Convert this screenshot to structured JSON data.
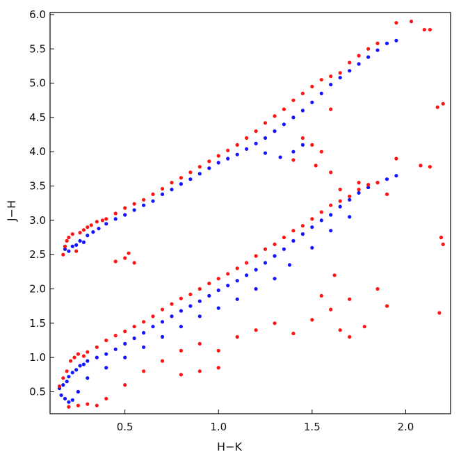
{
  "chart_data": {
    "type": "scatter",
    "xlabel": "H−K",
    "ylabel": "J−H",
    "xlim": [
      0.1,
      2.24
    ],
    "ylim": [
      0.18,
      6.03
    ],
    "x_ticks": [
      {
        "value": 0.5,
        "label": "0.5"
      },
      {
        "value": 1.0,
        "label": "1.0"
      },
      {
        "value": 1.5,
        "label": "1.5"
      },
      {
        "value": 2.0,
        "label": "2.0"
      }
    ],
    "y_ticks": [
      {
        "value": 0.5,
        "label": "0.5"
      },
      {
        "value": 1.0,
        "label": "1.0"
      },
      {
        "value": 1.5,
        "label": "1.5"
      },
      {
        "value": 2.0,
        "label": "2.0"
      },
      {
        "value": 2.5,
        "label": "2.5"
      },
      {
        "value": 3.0,
        "label": "3.0"
      },
      {
        "value": 3.5,
        "label": "3.5"
      },
      {
        "value": 4.0,
        "label": "4.0"
      },
      {
        "value": 4.5,
        "label": "4.5"
      },
      {
        "value": 5.0,
        "label": "5.0"
      },
      {
        "value": 5.5,
        "label": "5.5"
      },
      {
        "value": 6.0,
        "label": "6.0"
      }
    ],
    "grid": false,
    "legend": "none",
    "colors": {
      "series_a": "#1414ff",
      "series_b": "#ff1414"
    },
    "series": [
      {
        "color": "#1414ff",
        "points": [
          [
            0.18,
            2.58
          ],
          [
            0.2,
            2.55
          ],
          [
            0.22,
            2.62
          ],
          [
            0.24,
            2.64
          ],
          [
            0.26,
            2.7
          ],
          [
            0.28,
            2.68
          ],
          [
            0.3,
            2.78
          ],
          [
            0.33,
            2.83
          ],
          [
            0.36,
            2.88
          ],
          [
            0.4,
            2.95
          ],
          [
            0.45,
            3.02
          ],
          [
            0.5,
            3.08
          ],
          [
            0.55,
            3.15
          ],
          [
            0.6,
            3.22
          ],
          [
            0.65,
            3.28
          ],
          [
            0.7,
            3.38
          ],
          [
            0.75,
            3.45
          ],
          [
            0.8,
            3.53
          ],
          [
            0.85,
            3.6
          ],
          [
            0.9,
            3.68
          ],
          [
            0.95,
            3.76
          ],
          [
            1.0,
            3.84
          ],
          [
            1.05,
            3.9
          ],
          [
            1.1,
            3.96
          ],
          [
            1.15,
            4.04
          ],
          [
            1.2,
            4.12
          ],
          [
            1.25,
            4.2
          ],
          [
            1.3,
            4.3
          ],
          [
            1.35,
            4.4
          ],
          [
            1.4,
            4.5
          ],
          [
            1.45,
            4.6
          ],
          [
            1.5,
            4.72
          ],
          [
            1.55,
            4.85
          ],
          [
            1.6,
            4.98
          ],
          [
            1.65,
            5.08
          ],
          [
            1.7,
            5.18
          ],
          [
            1.75,
            5.28
          ],
          [
            1.8,
            5.38
          ],
          [
            1.85,
            5.48
          ],
          [
            1.9,
            5.58
          ],
          [
            1.95,
            5.62
          ],
          [
            1.33,
            3.92
          ],
          [
            1.4,
            4.0
          ],
          [
            1.45,
            4.1
          ],
          [
            1.25,
            3.98
          ],
          [
            0.15,
            0.55
          ],
          [
            0.17,
            0.6
          ],
          [
            0.19,
            0.65
          ],
          [
            0.2,
            0.72
          ],
          [
            0.22,
            0.78
          ],
          [
            0.24,
            0.82
          ],
          [
            0.26,
            0.88
          ],
          [
            0.28,
            0.9
          ],
          [
            0.3,
            0.95
          ],
          [
            0.35,
            1.0
          ],
          [
            0.4,
            1.05
          ],
          [
            0.45,
            1.12
          ],
          [
            0.5,
            1.2
          ],
          [
            0.55,
            1.28
          ],
          [
            0.6,
            1.36
          ],
          [
            0.65,
            1.45
          ],
          [
            0.7,
            1.52
          ],
          [
            0.75,
            1.6
          ],
          [
            0.8,
            1.68
          ],
          [
            0.85,
            1.75
          ],
          [
            0.9,
            1.82
          ],
          [
            0.95,
            1.9
          ],
          [
            1.0,
            1.98
          ],
          [
            1.05,
            2.05
          ],
          [
            1.1,
            2.12
          ],
          [
            1.15,
            2.2
          ],
          [
            1.2,
            2.28
          ],
          [
            1.25,
            2.38
          ],
          [
            1.3,
            2.48
          ],
          [
            1.35,
            2.58
          ],
          [
            1.4,
            2.7
          ],
          [
            1.45,
            2.8
          ],
          [
            1.5,
            2.9
          ],
          [
            1.55,
            3.0
          ],
          [
            1.6,
            3.08
          ],
          [
            1.65,
            3.2
          ],
          [
            1.7,
            3.3
          ],
          [
            1.75,
            3.4
          ],
          [
            1.8,
            3.48
          ],
          [
            1.85,
            3.55
          ],
          [
            1.9,
            3.6
          ],
          [
            1.95,
            3.65
          ],
          [
            0.16,
            0.45
          ],
          [
            0.18,
            0.4
          ],
          [
            0.2,
            0.35
          ],
          [
            0.22,
            0.38
          ],
          [
            0.25,
            0.5
          ],
          [
            0.3,
            0.7
          ],
          [
            0.4,
            0.85
          ],
          [
            0.5,
            1.0
          ],
          [
            0.6,
            1.15
          ],
          [
            0.7,
            1.3
          ],
          [
            0.8,
            1.45
          ],
          [
            0.9,
            1.6
          ],
          [
            1.0,
            1.72
          ],
          [
            1.1,
            1.85
          ],
          [
            1.2,
            2.0
          ],
          [
            1.3,
            2.15
          ],
          [
            1.38,
            2.35
          ],
          [
            1.5,
            2.6
          ],
          [
            1.6,
            2.85
          ],
          [
            1.7,
            3.05
          ]
        ]
      },
      {
        "color": "#ff1414",
        "points": [
          [
            0.17,
            2.5
          ],
          [
            0.18,
            2.62
          ],
          [
            0.19,
            2.7
          ],
          [
            0.2,
            2.75
          ],
          [
            0.22,
            2.8
          ],
          [
            0.24,
            2.55
          ],
          [
            0.26,
            2.82
          ],
          [
            0.28,
            2.86
          ],
          [
            0.3,
            2.9
          ],
          [
            0.32,
            2.93
          ],
          [
            0.35,
            2.98
          ],
          [
            0.38,
            3.0
          ],
          [
            0.4,
            3.02
          ],
          [
            0.45,
            3.1
          ],
          [
            0.5,
            3.18
          ],
          [
            0.55,
            3.24
          ],
          [
            0.6,
            3.3
          ],
          [
            0.65,
            3.38
          ],
          [
            0.7,
            3.46
          ],
          [
            0.75,
            3.55
          ],
          [
            0.8,
            3.62
          ],
          [
            0.85,
            3.7
          ],
          [
            0.9,
            3.78
          ],
          [
            0.95,
            3.86
          ],
          [
            1.0,
            3.94
          ],
          [
            1.05,
            4.02
          ],
          [
            1.1,
            4.1
          ],
          [
            1.15,
            4.2
          ],
          [
            1.2,
            4.3
          ],
          [
            1.25,
            4.42
          ],
          [
            1.3,
            4.52
          ],
          [
            1.35,
            4.62
          ],
          [
            1.4,
            4.75
          ],
          [
            1.45,
            4.85
          ],
          [
            1.5,
            4.95
          ],
          [
            1.55,
            5.05
          ],
          [
            1.6,
            5.1
          ],
          [
            1.65,
            5.15
          ],
          [
            1.7,
            5.3
          ],
          [
            1.75,
            5.4
          ],
          [
            1.8,
            5.5
          ],
          [
            1.85,
            5.58
          ],
          [
            1.95,
            5.88
          ],
          [
            2.03,
            5.9
          ],
          [
            2.1,
            5.78
          ],
          [
            2.13,
            5.78
          ],
          [
            2.17,
            4.65
          ],
          [
            2.2,
            4.7
          ],
          [
            2.2,
            2.65
          ],
          [
            2.19,
            2.75
          ],
          [
            1.95,
            3.9
          ],
          [
            2.08,
            3.8
          ],
          [
            2.13,
            3.78
          ],
          [
            2.18,
            1.65
          ],
          [
            1.4,
            3.88
          ],
          [
            1.52,
            3.8
          ],
          [
            1.6,
            3.7
          ],
          [
            1.65,
            3.45
          ],
          [
            1.75,
            3.55
          ],
          [
            1.9,
            3.38
          ],
          [
            1.45,
            4.2
          ],
          [
            1.5,
            4.1
          ],
          [
            1.55,
            4.0
          ],
          [
            0.45,
            2.4
          ],
          [
            0.5,
            2.45
          ],
          [
            0.55,
            2.38
          ],
          [
            0.52,
            2.52
          ],
          [
            1.6,
            4.62
          ],
          [
            0.15,
            0.58
          ],
          [
            0.17,
            0.7
          ],
          [
            0.19,
            0.8
          ],
          [
            0.21,
            0.95
          ],
          [
            0.23,
            1.0
          ],
          [
            0.25,
            1.05
          ],
          [
            0.28,
            1.02
          ],
          [
            0.3,
            1.08
          ],
          [
            0.35,
            1.15
          ],
          [
            0.4,
            1.25
          ],
          [
            0.45,
            1.32
          ],
          [
            0.5,
            1.38
          ],
          [
            0.55,
            1.45
          ],
          [
            0.6,
            1.52
          ],
          [
            0.65,
            1.6
          ],
          [
            0.7,
            1.7
          ],
          [
            0.75,
            1.78
          ],
          [
            0.8,
            1.86
          ],
          [
            0.85,
            1.92
          ],
          [
            0.9,
            2.0
          ],
          [
            0.95,
            2.08
          ],
          [
            1.0,
            2.15
          ],
          [
            1.05,
            2.22
          ],
          [
            1.1,
            2.3
          ],
          [
            1.15,
            2.38
          ],
          [
            1.2,
            2.48
          ],
          [
            1.25,
            2.58
          ],
          [
            1.3,
            2.65
          ],
          [
            1.35,
            2.75
          ],
          [
            1.4,
            2.85
          ],
          [
            1.45,
            2.92
          ],
          [
            1.5,
            3.02
          ],
          [
            1.55,
            3.12
          ],
          [
            1.6,
            3.22
          ],
          [
            1.65,
            3.28
          ],
          [
            1.7,
            3.35
          ],
          [
            1.75,
            3.45
          ],
          [
            1.8,
            3.52
          ],
          [
            1.85,
            3.55
          ],
          [
            0.2,
            0.28
          ],
          [
            0.25,
            0.3
          ],
          [
            0.3,
            0.32
          ],
          [
            0.35,
            0.3
          ],
          [
            0.4,
            0.4
          ],
          [
            0.5,
            0.6
          ],
          [
            0.6,
            0.8
          ],
          [
            0.7,
            0.95
          ],
          [
            0.8,
            1.1
          ],
          [
            0.9,
            1.2
          ],
          [
            1.0,
            1.1
          ],
          [
            1.1,
            1.3
          ],
          [
            1.2,
            1.4
          ],
          [
            1.3,
            1.5
          ],
          [
            1.4,
            1.35
          ],
          [
            1.5,
            1.55
          ],
          [
            1.6,
            1.7
          ],
          [
            1.7,
            1.85
          ],
          [
            1.65,
            1.4
          ],
          [
            1.7,
            1.3
          ],
          [
            1.85,
            2.0
          ],
          [
            1.9,
            1.75
          ],
          [
            1.78,
            1.45
          ],
          [
            1.62,
            2.2
          ],
          [
            1.55,
            1.9
          ],
          [
            0.8,
            0.75
          ],
          [
            0.9,
            0.8
          ],
          [
            1.0,
            0.85
          ]
        ]
      }
    ]
  }
}
